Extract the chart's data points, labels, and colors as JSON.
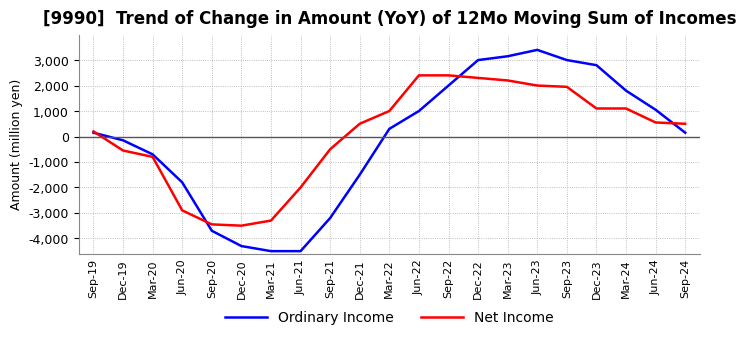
{
  "title": "[9990]  Trend of Change in Amount (YoY) of 12Mo Moving Sum of Incomes",
  "ylabel": "Amount (million yen)",
  "x_labels": [
    "Sep-19",
    "Dec-19",
    "Mar-20",
    "Jun-20",
    "Sep-20",
    "Dec-20",
    "Mar-21",
    "Jun-21",
    "Sep-21",
    "Dec-21",
    "Mar-22",
    "Jun-22",
    "Sep-22",
    "Dec-22",
    "Mar-23",
    "Jun-23",
    "Sep-23",
    "Dec-23",
    "Mar-24",
    "Jun-24",
    "Sep-24"
  ],
  "ordinary_income": [
    150,
    -150,
    -700,
    -1800,
    -3700,
    -4300,
    -4500,
    -4500,
    -3200,
    -1500,
    300,
    1000,
    2000,
    3000,
    3150,
    3400,
    3000,
    2800,
    1800,
    1050,
    150
  ],
  "net_income": [
    200,
    -550,
    -800,
    -2900,
    -3450,
    -3500,
    -3300,
    -2000,
    -500,
    500,
    1000,
    2400,
    2400,
    2300,
    2200,
    2000,
    1950,
    1100,
    1100,
    550,
    500
  ],
  "ordinary_income_color": "#0000ff",
  "net_income_color": "#ff0000",
  "ylim": [
    -4600,
    4000
  ],
  "yticks": [
    -4000,
    -3000,
    -2000,
    -1000,
    0,
    1000,
    2000,
    3000
  ],
  "background_color": "#ffffff",
  "plot_background": "#ffffff",
  "grid_color": "#aaaaaa",
  "title_fontsize": 12,
  "axis_fontsize": 9,
  "tick_fontsize": 8,
  "legend_fontsize": 10,
  "line_width": 1.8
}
